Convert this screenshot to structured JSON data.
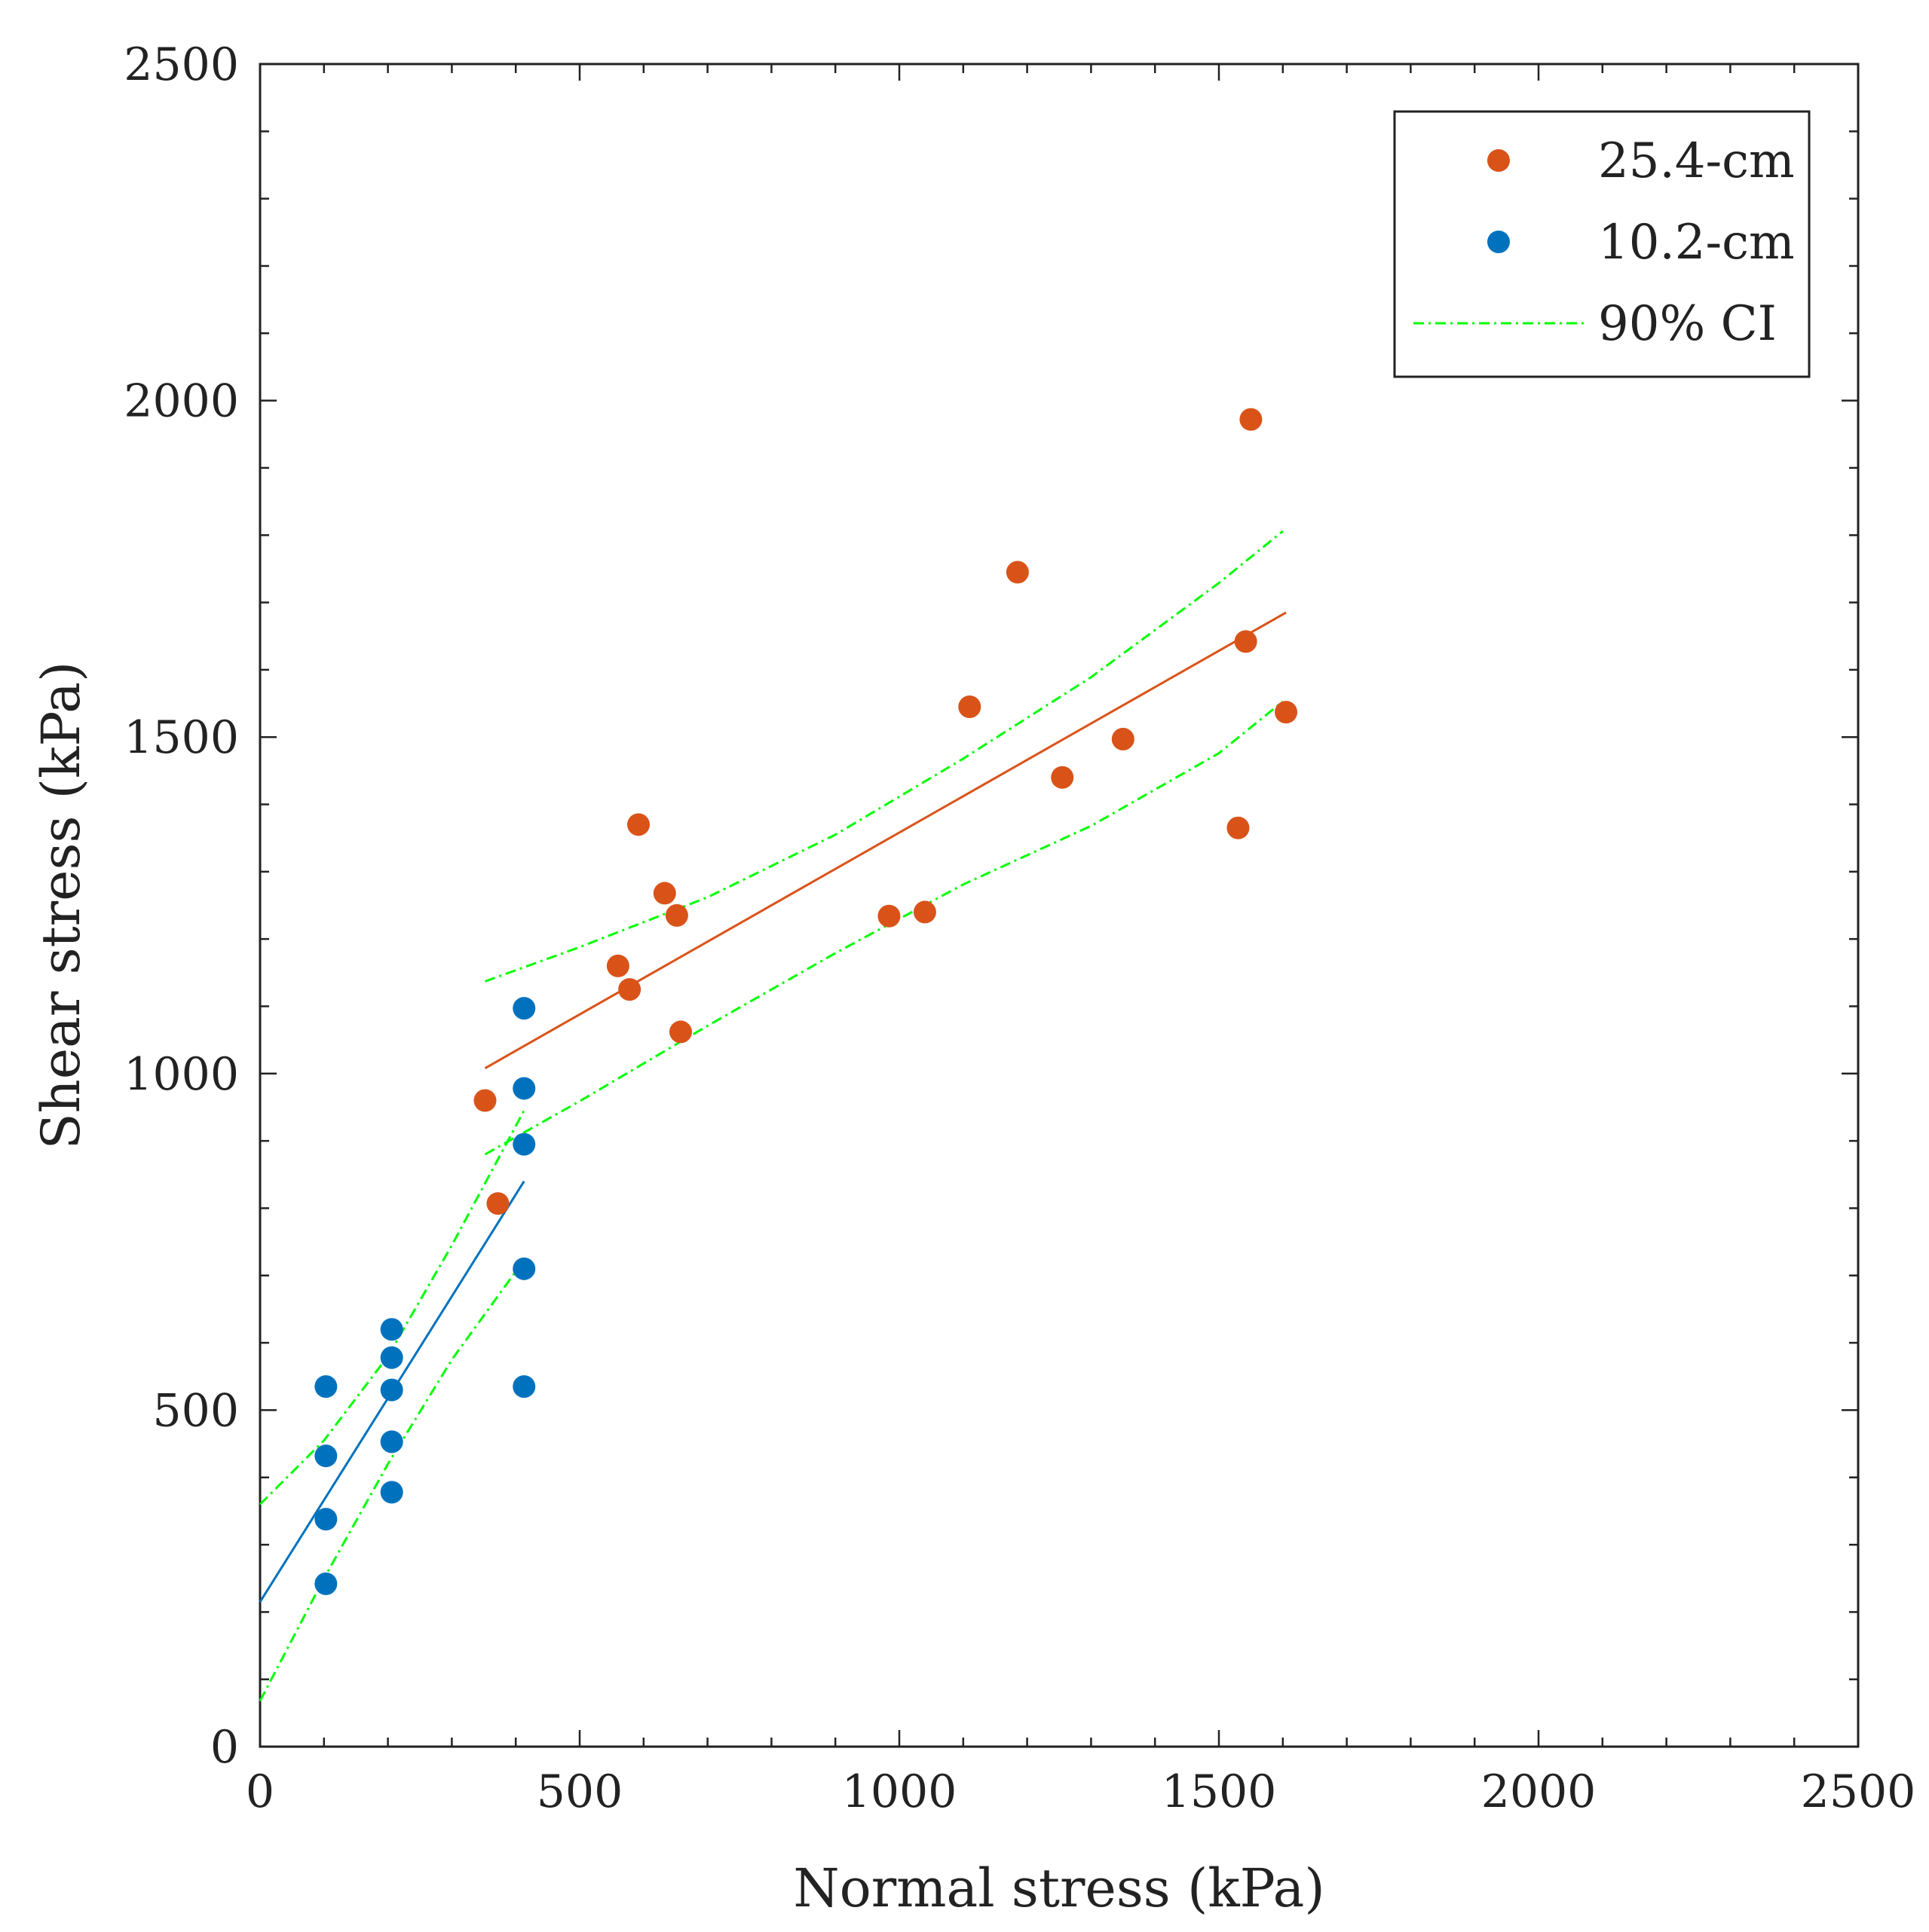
{
  "chart_data": {
    "type": "scatter",
    "title": "",
    "xlabel": "Normal stress (kPa)",
    "ylabel": "Shear stress (kPa)",
    "xlim": [
      0,
      2500
    ],
    "ylim": [
      0,
      2500
    ],
    "xticks": [
      0,
      500,
      1000,
      1500,
      2000,
      2500
    ],
    "yticks": [
      0,
      500,
      1000,
      1500,
      2000,
      2500
    ],
    "xtick_labels": [
      "0",
      "500",
      "1000",
      "1500",
      "2000",
      "2500"
    ],
    "ytick_labels": [
      "0",
      "500",
      "1000",
      "1500",
      "2000",
      "2500"
    ],
    "minor_tick_step": 100,
    "grid": false,
    "legend_position": "top-right",
    "legend": [
      {
        "label": "25.4-cm",
        "kind": "marker",
        "color": "#d95319"
      },
      {
        "label": "10.2-cm",
        "kind": "marker",
        "color": "#0072bd"
      },
      {
        "label": "90% CI",
        "kind": "dashdot-line",
        "color": "#00ff00"
      }
    ],
    "series": [
      {
        "name": "25.4-cm",
        "color": "#d95319",
        "points": [
          [
            352,
            960
          ],
          [
            372,
            807
          ],
          [
            560,
            1160
          ],
          [
            578,
            1125
          ],
          [
            592,
            1370
          ],
          [
            633,
            1268
          ],
          [
            652,
            1235
          ],
          [
            658,
            1062
          ],
          [
            984,
            1234
          ],
          [
            1040,
            1240
          ],
          [
            1110,
            1545
          ],
          [
            1185,
            1745
          ],
          [
            1255,
            1440
          ],
          [
            1350,
            1497
          ],
          [
            1530,
            1365
          ],
          [
            1542,
            1642
          ],
          [
            1550,
            1972
          ],
          [
            1605,
            1537
          ]
        ]
      },
      {
        "name": "10.2-cm",
        "color": "#0072bd",
        "points": [
          [
            103,
            535
          ],
          [
            103,
            432
          ],
          [
            103,
            338
          ],
          [
            103,
            242
          ],
          [
            206,
            620
          ],
          [
            206,
            578
          ],
          [
            206,
            530
          ],
          [
            206,
            453
          ],
          [
            206,
            378
          ],
          [
            413,
            1097
          ],
          [
            413,
            978
          ],
          [
            413,
            895
          ],
          [
            413,
            710
          ],
          [
            413,
            535
          ]
        ]
      }
    ],
    "fits": [
      {
        "name": "25.4-cm fit",
        "color": "#d95319",
        "x": [
          352,
          1605
        ],
        "y": [
          1008,
          1685
        ]
      },
      {
        "name": "10.2-cm fit",
        "color": "#0072bd",
        "x": [
          0,
          413
        ],
        "y": [
          215,
          840
        ]
      }
    ],
    "confidence_bands": [
      {
        "name": "90% CI 25.4-cm upper",
        "color": "#00ff00",
        "x": [
          352,
          500,
          700,
          900,
          1100,
          1300,
          1500,
          1600
        ],
        "y": [
          1137,
          1188,
          1262,
          1355,
          1468,
          1589,
          1729,
          1806
        ]
      },
      {
        "name": "90% CI 25.4-cm lower",
        "color": "#00ff00",
        "x": [
          352,
          500,
          700,
          900,
          1100,
          1300,
          1500,
          1600
        ],
        "y": [
          880,
          959,
          1071,
          1179,
          1281,
          1368,
          1476,
          1553
        ]
      },
      {
        "name": "90% CI 10.2-cm upper",
        "color": "#00ff00",
        "x": [
          0,
          100,
          200,
          300,
          413
        ],
        "y": [
          360,
          455,
          580,
          745,
          945
        ]
      },
      {
        "name": "90% CI 10.2-cm lower",
        "color": "#00ff00",
        "x": [
          0,
          100,
          200,
          300,
          413
        ],
        "y": [
          68,
          250,
          420,
          575,
          723
        ]
      }
    ]
  }
}
